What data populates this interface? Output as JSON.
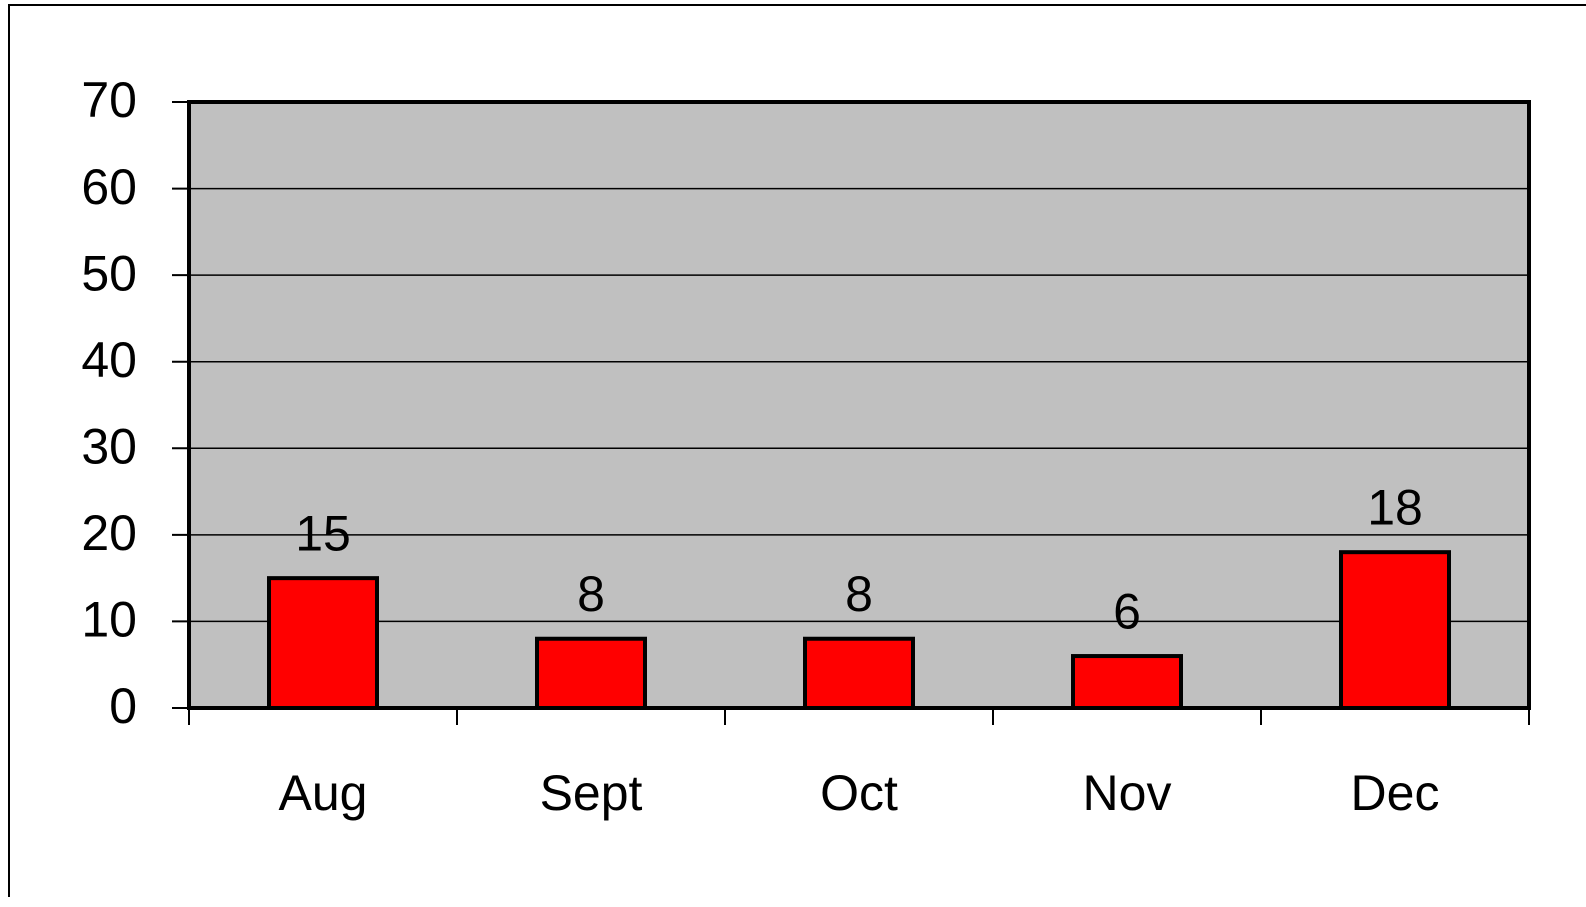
{
  "chart_data": {
    "type": "bar",
    "categories": [
      "Aug",
      "Sept",
      "Oct",
      "Nov",
      "Dec"
    ],
    "values": [
      15,
      8,
      8,
      6,
      18
    ],
    "color": "#ff0000",
    "ylim": [
      0,
      70
    ],
    "yticks": [
      0,
      10,
      20,
      30,
      40,
      50,
      60,
      70
    ],
    "grid": true
  }
}
